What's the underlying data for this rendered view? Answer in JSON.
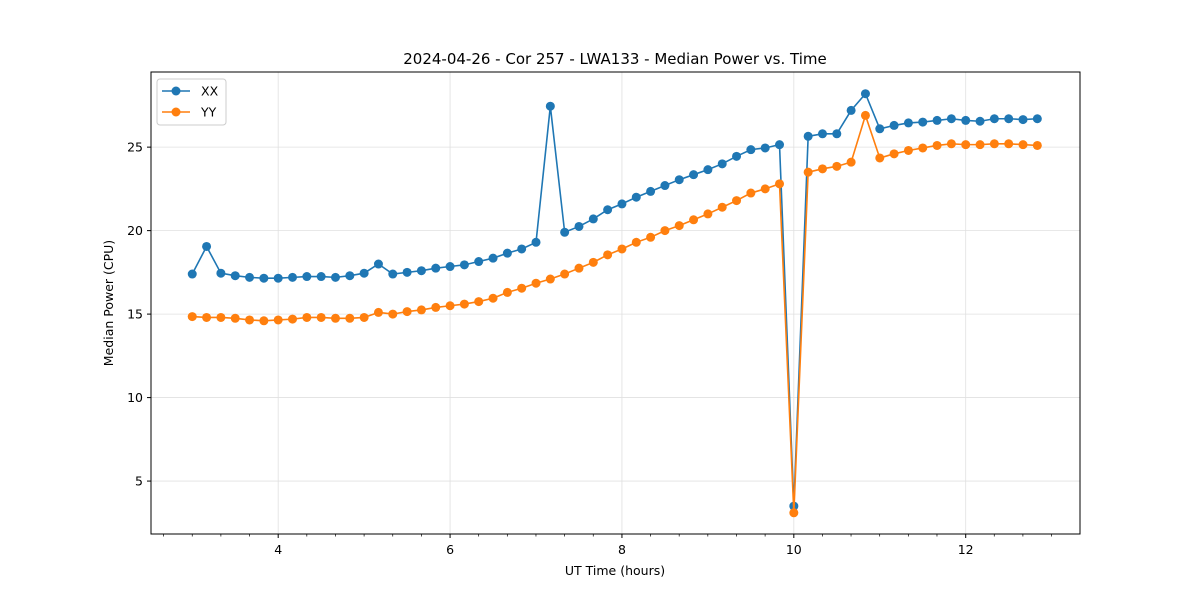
{
  "chart_data": {
    "type": "line",
    "title": "2024-04-26 - Cor 257 - LWA133 - Median Power vs. Time",
    "xlabel": "UT Time (hours)",
    "ylabel": "Median Power (CPU)",
    "xlim": [
      2.52,
      13.33
    ],
    "ylim": [
      1.83,
      29.5
    ],
    "xticks": [
      4,
      6,
      8,
      10,
      12
    ],
    "xtick_labels": [
      "4",
      "6",
      "8",
      "10",
      "12"
    ],
    "yticks": [
      5,
      10,
      15,
      20,
      25
    ],
    "ytick_labels": [
      "5",
      "10",
      "15",
      "20",
      "25"
    ],
    "x_minor_step": 0.3333,
    "grid": true,
    "legend_position": "top-left",
    "x_start": 3.0,
    "x_step": 0.16667,
    "series": [
      {
        "name": "XX",
        "color": "#1f77b4",
        "values": [
          17.4,
          19.05,
          17.45,
          17.3,
          17.2,
          17.15,
          17.15,
          17.2,
          17.25,
          17.25,
          17.2,
          17.3,
          17.45,
          18.0,
          17.4,
          17.5,
          17.6,
          17.75,
          17.85,
          17.95,
          18.15,
          18.35,
          18.65,
          18.9,
          19.3,
          27.45,
          19.9,
          20.25,
          20.7,
          21.25,
          21.6,
          22.0,
          22.35,
          22.7,
          23.05,
          23.35,
          23.65,
          24.0,
          24.45,
          24.85,
          24.95,
          25.15,
          3.5,
          25.65,
          25.8,
          25.8,
          27.2,
          28.2,
          26.1,
          26.3,
          26.45,
          26.5,
          26.6,
          26.7,
          26.6,
          26.55,
          26.7,
          26.7,
          26.65,
          26.7
        ]
      },
      {
        "name": "YY",
        "color": "#ff7f0e",
        "values": [
          14.85,
          14.8,
          14.8,
          14.75,
          14.65,
          14.6,
          14.65,
          14.7,
          14.8,
          14.8,
          14.75,
          14.75,
          14.8,
          15.1,
          15.0,
          15.15,
          15.25,
          15.4,
          15.5,
          15.6,
          15.75,
          15.95,
          16.3,
          16.55,
          16.85,
          17.1,
          17.4,
          17.75,
          18.1,
          18.55,
          18.9,
          19.3,
          19.6,
          20.0,
          20.3,
          20.65,
          21.0,
          21.4,
          21.8,
          22.25,
          22.5,
          22.8,
          3.1,
          23.5,
          23.7,
          23.85,
          24.1,
          26.9,
          24.35,
          24.6,
          24.8,
          24.95,
          25.1,
          25.2,
          25.15,
          25.15,
          25.2,
          25.2,
          25.15,
          25.1
        ]
      }
    ]
  }
}
